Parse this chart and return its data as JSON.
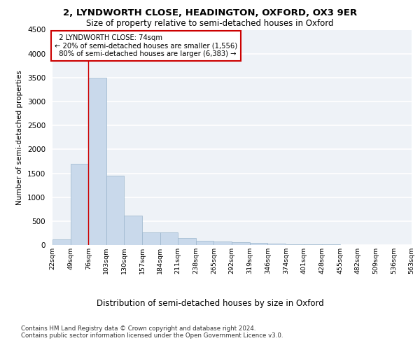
{
  "title_line1": "2, LYNDWORTH CLOSE, HEADINGTON, OXFORD, OX3 9ER",
  "title_line2": "Size of property relative to semi-detached houses in Oxford",
  "xlabel": "Distribution of semi-detached houses by size in Oxford",
  "ylabel": "Number of semi-detached properties",
  "footnote": "Contains HM Land Registry data © Crown copyright and database right 2024.\nContains public sector information licensed under the Open Government Licence v3.0.",
  "bar_color": "#c9d9eb",
  "bar_edge_color": "#9ab5cc",
  "annotation_box_color": "#cc0000",
  "vline_color": "#cc0000",
  "property_label": "2 LYNDWORTH CLOSE: 74sqm",
  "pct_smaller": 20,
  "pct_smaller_count": "1,556",
  "pct_larger": 80,
  "pct_larger_count": "6,383",
  "bins": [
    22,
    49,
    76,
    103,
    130,
    157,
    184,
    211,
    238,
    265,
    292,
    319,
    346,
    374,
    401,
    428,
    455,
    482,
    509,
    536,
    563
  ],
  "bin_labels": [
    "22sqm",
    "49sqm",
    "76sqm",
    "103sqm",
    "130sqm",
    "157sqm",
    "184sqm",
    "211sqm",
    "238sqm",
    "265sqm",
    "292sqm",
    "319sqm",
    "346sqm",
    "374sqm",
    "401sqm",
    "428sqm",
    "455sqm",
    "482sqm",
    "509sqm",
    "536sqm",
    "563sqm"
  ],
  "bar_heights": [
    120,
    1700,
    3500,
    1450,
    620,
    270,
    260,
    145,
    90,
    80,
    55,
    50,
    30,
    20,
    10,
    8,
    5,
    4,
    3,
    2,
    0
  ],
  "ylim": [
    0,
    4500
  ],
  "yticks": [
    0,
    500,
    1000,
    1500,
    2000,
    2500,
    3000,
    3500,
    4000,
    4500
  ],
  "background_color": "#eef2f7",
  "grid_color": "#ffffff",
  "vline_x": 76
}
